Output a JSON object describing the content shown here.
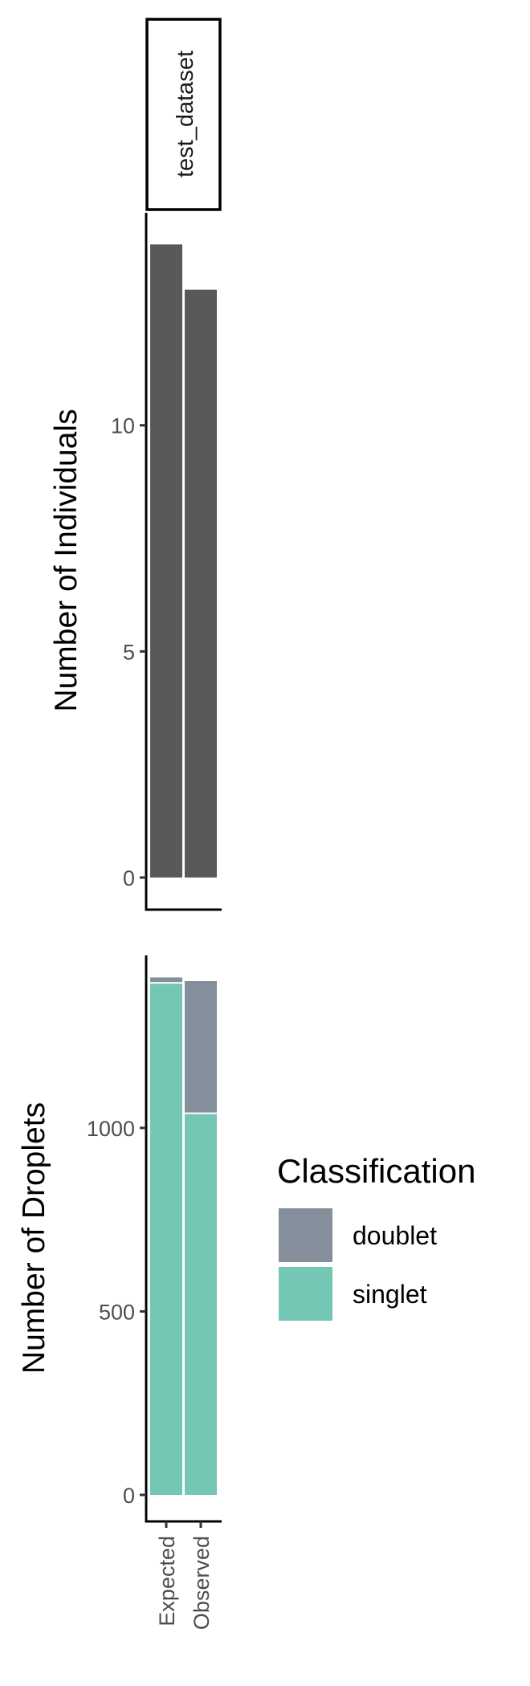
{
  "colors": {
    "individuals_bar": "#595959",
    "doublet": "#858F9B",
    "singlet": "#74C6B5"
  },
  "chart_data": [
    {
      "type": "bar",
      "facet_label": "test_dataset",
      "categories": [
        "Expected",
        "Observed"
      ],
      "values": [
        14,
        13
      ],
      "xlabel": "",
      "ylabel": "Number of Individuals",
      "ylim": [
        0,
        14.7
      ],
      "yticks": [
        0,
        5,
        10
      ],
      "grid": false
    },
    {
      "type": "bar",
      "stacked": true,
      "categories": [
        "Expected",
        "Observed"
      ],
      "series": [
        {
          "name": "singlet",
          "values": [
            1395,
            1040
          ]
        },
        {
          "name": "doublet",
          "values": [
            15,
            360
          ]
        }
      ],
      "xlabel": "",
      "ylabel": "Number of Droplets",
      "ylim": [
        0,
        1470
      ],
      "yticks": [
        0,
        500,
        1000
      ],
      "grid": false,
      "legend": {
        "title": "Classification",
        "position": "right",
        "entries": [
          "doublet",
          "singlet"
        ]
      }
    }
  ]
}
